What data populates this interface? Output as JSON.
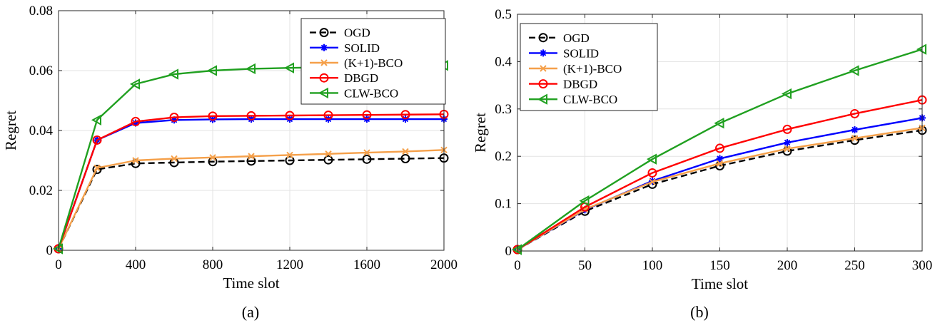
{
  "chart_data": [
    {
      "type": "line",
      "caption": "(a)",
      "xlabel": "Time slot",
      "ylabel": "Regret",
      "xlim": [
        0,
        2000
      ],
      "ylim": [
        0,
        0.08
      ],
      "xticks": [
        0,
        400,
        800,
        1200,
        1600,
        2000
      ],
      "xtick_labels": [
        "0",
        "400",
        "800",
        "1200",
        "1600",
        "2000"
      ],
      "yticks": [
        0,
        0.02,
        0.04,
        0.06,
        0.08
      ],
      "ytick_labels": [
        "0",
        "0.02",
        "0.04",
        "0.06",
        "0.08"
      ],
      "grid": true,
      "legend_position": "top-right",
      "x": [
        0,
        200,
        400,
        600,
        800,
        1000,
        1200,
        1400,
        1600,
        1800,
        2000
      ],
      "series": [
        {
          "name": "OGD",
          "color": "#000000",
          "dash": true,
          "marker": "circle",
          "values": [
            0.0005,
            0.027,
            0.029,
            0.0293,
            0.0296,
            0.0298,
            0.03,
            0.0302,
            0.0304,
            0.0306,
            0.0308
          ]
        },
        {
          "name": "SOLID",
          "color": "#0000ff",
          "dash": false,
          "marker": "star",
          "values": [
            0.0005,
            0.0368,
            0.0425,
            0.0435,
            0.0437,
            0.0438,
            0.0438,
            0.0438,
            0.0438,
            0.0438,
            0.0438
          ]
        },
        {
          "name": "(K+1)-BCO",
          "color": "#f5a04a",
          "dash": false,
          "marker": "x",
          "values": [
            0.0005,
            0.0275,
            0.03,
            0.0306,
            0.031,
            0.0314,
            0.0318,
            0.0322,
            0.0326,
            0.033,
            0.0335
          ]
        },
        {
          "name": "DBGD",
          "color": "#ff0000",
          "dash": false,
          "marker": "circle",
          "values": [
            0.0005,
            0.0368,
            0.043,
            0.0444,
            0.0448,
            0.0449,
            0.045,
            0.0451,
            0.0452,
            0.0453,
            0.0454
          ]
        },
        {
          "name": "CLW-BCO",
          "color": "#20a020",
          "dash": false,
          "marker": "triangle-left",
          "values": [
            0.0005,
            0.0435,
            0.0555,
            0.0588,
            0.06,
            0.0606,
            0.0609,
            0.0611,
            0.0613,
            0.0615,
            0.0617
          ]
        }
      ]
    },
    {
      "type": "line",
      "caption": "(b)",
      "xlabel": "Time slot",
      "ylabel": "Regret",
      "xlim": [
        0,
        300
      ],
      "ylim": [
        0,
        0.5
      ],
      "xticks": [
        0,
        50,
        100,
        150,
        200,
        250,
        300
      ],
      "xtick_labels": [
        "0",
        "50",
        "100",
        "150",
        "200",
        "250",
        "300"
      ],
      "yticks": [
        0,
        0.1,
        0.2,
        0.3,
        0.4,
        0.5
      ],
      "ytick_labels": [
        "0",
        "0.1",
        "0.2",
        "0.3",
        "0.4",
        "0.5"
      ],
      "grid": true,
      "legend_position": "top-left",
      "x": [
        0,
        50,
        100,
        150,
        200,
        250,
        300
      ],
      "series": [
        {
          "name": "OGD",
          "color": "#000000",
          "dash": true,
          "marker": "circle",
          "values": [
            0.003,
            0.084,
            0.141,
            0.18,
            0.211,
            0.234,
            0.255
          ]
        },
        {
          "name": "SOLID",
          "color": "#0000ff",
          "dash": false,
          "marker": "star",
          "values": [
            0.003,
            0.087,
            0.148,
            0.195,
            0.229,
            0.256,
            0.281
          ]
        },
        {
          "name": "(K+1)-BCO",
          "color": "#f5a04a",
          "dash": false,
          "marker": "x",
          "values": [
            0.003,
            0.088,
            0.146,
            0.185,
            0.216,
            0.238,
            0.26
          ]
        },
        {
          "name": "DBGD",
          "color": "#ff0000",
          "dash": false,
          "marker": "circle",
          "values": [
            0.003,
            0.093,
            0.165,
            0.217,
            0.257,
            0.29,
            0.319
          ]
        },
        {
          "name": "CLW-BCO",
          "color": "#20a020",
          "dash": false,
          "marker": "triangle-left",
          "values": [
            0.003,
            0.106,
            0.194,
            0.27,
            0.332,
            0.381,
            0.426
          ]
        }
      ]
    }
  ]
}
